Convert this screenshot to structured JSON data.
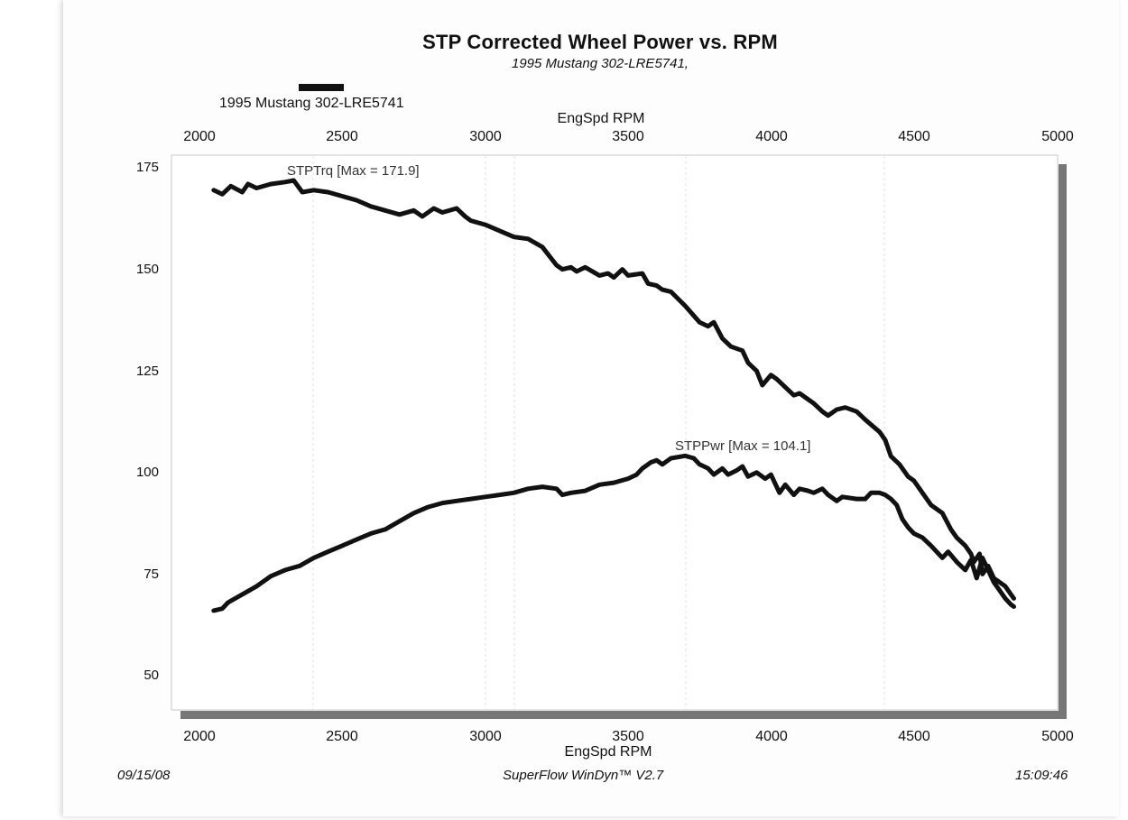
{
  "chart_data": {
    "type": "line",
    "title": "STP Corrected Wheel Power vs. RPM",
    "subtitle": "1995 Mustang 302-LRE5741,",
    "legend": [
      {
        "label": "1995 Mustang 302-LRE5741",
        "color": "#111111"
      }
    ],
    "xlabel": "EngSpd  RPM",
    "x_ticks": [
      "2000",
      "2500",
      "3000",
      "3500",
      "4000",
      "4500",
      "5000"
    ],
    "y_ticks": [
      "50",
      "75",
      "100",
      "125",
      "150",
      "175"
    ],
    "xlim": [
      2000,
      5000
    ],
    "ylim": [
      40,
      177
    ],
    "grid": true,
    "series": [
      {
        "name": "STPTrq",
        "annotation": "STPTrq [Max = 171.9]",
        "x": [
          2050,
          2080,
          2110,
          2150,
          2170,
          2200,
          2250,
          2300,
          2330,
          2360,
          2400,
          2450,
          2500,
          2550,
          2600,
          2650,
          2700,
          2750,
          2780,
          2820,
          2850,
          2900,
          2930,
          2950,
          3000,
          3050,
          3100,
          3150,
          3200,
          3250,
          3270,
          3300,
          3320,
          3350,
          3400,
          3430,
          3450,
          3480,
          3500,
          3550,
          3570,
          3600,
          3620,
          3650,
          3700,
          3750,
          3780,
          3800,
          3830,
          3860,
          3900,
          3920,
          3950,
          3970,
          4000,
          4020,
          4050,
          4080,
          4100,
          4150,
          4180,
          4200,
          4230,
          4260,
          4300,
          4330,
          4380,
          4400,
          4420,
          4450,
          4480,
          4500,
          4530,
          4560,
          4600,
          4630,
          4650,
          4680,
          4700,
          4710,
          4730,
          4740,
          4760,
          4780,
          4800,
          4820,
          4840,
          4850
        ],
        "y": [
          169.5,
          168.5,
          170.5,
          169.0,
          171.0,
          170.0,
          171.0,
          171.5,
          171.9,
          169.0,
          169.5,
          169.0,
          168.0,
          167.0,
          165.5,
          164.5,
          163.5,
          164.5,
          163.0,
          165.0,
          164.0,
          165.0,
          163.0,
          162.0,
          161.0,
          159.5,
          158.0,
          157.5,
          155.5,
          151.0,
          150.0,
          150.5,
          149.5,
          150.5,
          148.5,
          149.0,
          148.0,
          150.0,
          148.5,
          149.0,
          146.5,
          146.0,
          145.0,
          144.5,
          141.0,
          137.0,
          136.0,
          137.0,
          133.0,
          131.0,
          130.0,
          127.0,
          125.0,
          121.5,
          124.0,
          123.0,
          121.0,
          119.0,
          119.5,
          117.0,
          115.0,
          114.0,
          115.5,
          116.0,
          115.0,
          113.0,
          110.0,
          108.0,
          104.0,
          102.0,
          99.0,
          98.0,
          95.0,
          92.0,
          90.0,
          86.0,
          84.0,
          82.0,
          80.0,
          78.0,
          80.0,
          75.0,
          77.0,
          74.0,
          73.0,
          72.0,
          70.0,
          69.0
        ]
      },
      {
        "name": "STPPwr",
        "annotation": "STPPwr [Max = 104.1]",
        "x": [
          2050,
          2080,
          2100,
          2150,
          2200,
          2250,
          2300,
          2350,
          2400,
          2450,
          2500,
          2550,
          2600,
          2650,
          2700,
          2750,
          2800,
          2850,
          2900,
          2950,
          3000,
          3050,
          3100,
          3150,
          3200,
          3250,
          3270,
          3300,
          3350,
          3400,
          3450,
          3500,
          3530,
          3550,
          3580,
          3600,
          3620,
          3650,
          3700,
          3730,
          3750,
          3780,
          3800,
          3830,
          3850,
          3880,
          3900,
          3920,
          3950,
          3980,
          4000,
          4030,
          4050,
          4080,
          4100,
          4130,
          4150,
          4180,
          4200,
          4230,
          4250,
          4300,
          4330,
          4350,
          4380,
          4400,
          4420,
          4440,
          4460,
          4480,
          4500,
          4530,
          4560,
          4600,
          4620,
          4650,
          4680,
          4700,
          4720,
          4740,
          4760,
          4780,
          4800,
          4820,
          4840,
          4850
        ],
        "y": [
          66.0,
          66.5,
          68.0,
          70.0,
          72.0,
          74.5,
          76.0,
          77.0,
          79.0,
          80.5,
          82.0,
          83.5,
          85.0,
          86.0,
          88.0,
          90.0,
          91.5,
          92.5,
          93.0,
          93.5,
          94.0,
          94.5,
          95.0,
          96.0,
          96.5,
          96.0,
          94.5,
          95.0,
          95.5,
          97.0,
          97.5,
          98.5,
          99.5,
          101.0,
          102.5,
          103.0,
          102.0,
          103.5,
          104.1,
          103.5,
          102.0,
          101.0,
          99.5,
          101.0,
          99.5,
          100.5,
          101.5,
          99.0,
          100.0,
          98.5,
          99.5,
          95.0,
          97.0,
          94.5,
          96.0,
          95.5,
          95.0,
          96.0,
          94.5,
          93.0,
          94.0,
          93.5,
          93.5,
          95.0,
          95.0,
          94.5,
          93.5,
          92.0,
          88.5,
          86.5,
          85.0,
          84.0,
          82.0,
          79.0,
          80.5,
          78.0,
          76.0,
          78.5,
          74.0,
          79.0,
          76.0,
          73.0,
          71.0,
          69.0,
          67.5,
          67.0
        ]
      }
    ]
  },
  "footer": {
    "date": "09/15/08",
    "software": "SuperFlow WinDyn™ V2.7",
    "time": "15:09:46"
  }
}
